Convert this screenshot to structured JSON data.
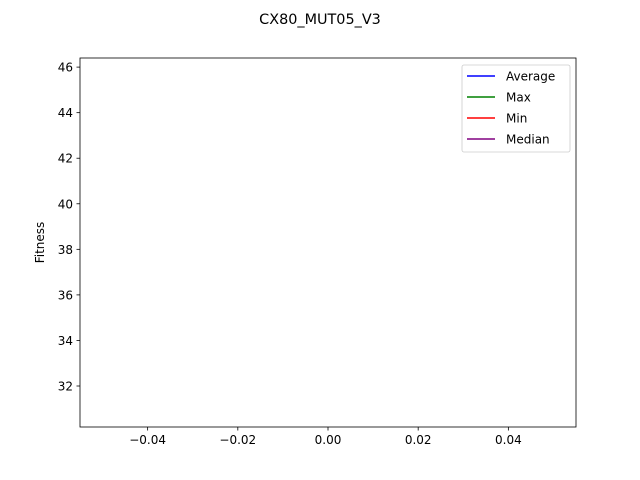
{
  "chart_data": {
    "type": "line",
    "title": "CX80_MUT05_V3",
    "xlabel": "",
    "ylabel": "Fitness",
    "xlim": [
      -0.055,
      0.055
    ],
    "ylim": [
      30.2,
      46.4
    ],
    "xticks": [
      -0.04,
      -0.02,
      0.0,
      0.02,
      0.04
    ],
    "xtick_labels": [
      "−0.04",
      "−0.02",
      "0.00",
      "0.02",
      "0.04"
    ],
    "yticks": [
      32,
      34,
      36,
      38,
      40,
      42,
      44,
      46
    ],
    "ytick_labels": [
      "32",
      "34",
      "36",
      "38",
      "40",
      "42",
      "44",
      "46"
    ],
    "grid": false,
    "legend_position": "top-right",
    "series": [
      {
        "name": "Average",
        "color": "#0000ff",
        "x": [],
        "y": []
      },
      {
        "name": "Max",
        "color": "#008000",
        "x": [],
        "y": []
      },
      {
        "name": "Min",
        "color": "#ff0000",
        "x": [],
        "y": []
      },
      {
        "name": "Median",
        "color": "#800080",
        "x": [],
        "y": []
      }
    ]
  }
}
